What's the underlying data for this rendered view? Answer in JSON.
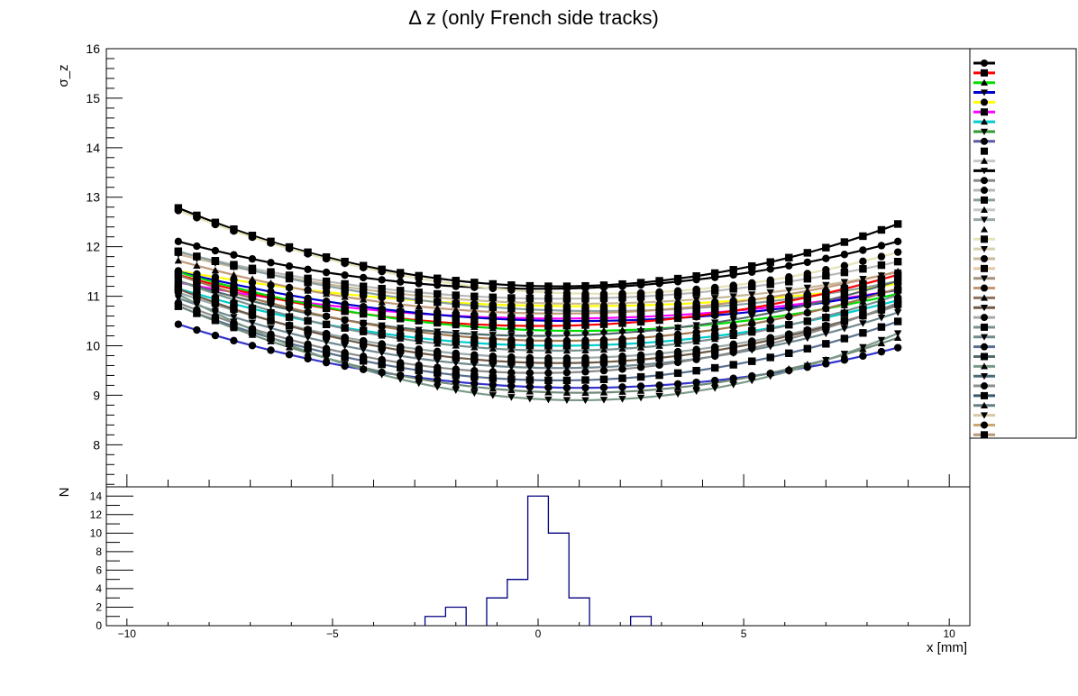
{
  "chart_data": [
    {
      "type": "line",
      "title": "Δ z (only French side tracks)",
      "ylabel": "σ_z",
      "xlim": [
        -10.5,
        10.5
      ],
      "ylim": [
        7.15,
        16
      ],
      "y_ticks": [
        "8",
        "9",
        "10",
        "11",
        "12",
        "13",
        "14",
        "15",
        "16"
      ],
      "x_values": [
        -8.75,
        -8.3,
        -7.85,
        -7.4,
        -6.95,
        -6.5,
        -6.05,
        -5.6,
        -5.15,
        -4.7,
        -4.25,
        -3.8,
        -3.35,
        -2.9,
        -2.45,
        -2.0,
        -1.55,
        -1.1,
        -0.65,
        -0.2,
        0.25,
        0.7,
        1.15,
        1.6,
        2.05,
        2.5,
        2.95,
        3.4,
        3.85,
        4.3,
        4.75,
        5.2,
        5.65,
        6.1,
        6.55,
        7.0,
        7.45,
        7.9,
        8.35,
        8.75
      ],
      "curve_model": "parabola",
      "series_parameters": [
        {
          "vertex_x": 0.5,
          "minimum": 11.2,
          "curvature": 0.0185,
          "color": "#000000",
          "marker": "square"
        },
        {
          "vertex_x": 0.0,
          "minimum": 11.15,
          "curvature": 0.0125,
          "color": "#000000",
          "marker": "circle"
        },
        {
          "vertex_x": 1.5,
          "minimum": 11.05,
          "curvature": 0.016,
          "color": "#e7e3b8",
          "marker": "circle"
        },
        {
          "vertex_x": 0.5,
          "minimum": 10.95,
          "curvature": 0.011,
          "color": "#b8b8b8",
          "marker": "square"
        },
        {
          "vertex_x": 1.0,
          "minimum": 10.85,
          "curvature": 0.0105,
          "color": "#c8b89a",
          "marker": "triangle-down"
        },
        {
          "vertex_x": 1.0,
          "minimum": 10.8,
          "curvature": 0.0075,
          "color": "#ffff00",
          "marker": "circle"
        },
        {
          "vertex_x": 1.5,
          "minimum": 10.7,
          "curvature": 0.0115,
          "color": "#8a9fa0",
          "marker": "square"
        },
        {
          "vertex_x": 0.5,
          "minimum": 10.65,
          "curvature": 0.0125,
          "color": "#c09878",
          "marker": "triangle"
        },
        {
          "vertex_x": 0.5,
          "minimum": 10.55,
          "curvature": 0.0085,
          "color": "#ff00ff",
          "marker": "square"
        },
        {
          "vertex_x": 1.0,
          "minimum": 10.5,
          "curvature": 0.0105,
          "color": "#0000cc",
          "marker": "circle"
        },
        {
          "vertex_x": 0.0,
          "minimum": 10.4,
          "curvature": 0.0135,
          "color": "#ff0000",
          "marker": "square"
        },
        {
          "vertex_x": 1.0,
          "minimum": 10.3,
          "curvature": 0.0125,
          "color": "#00dd00",
          "marker": "triangle"
        },
        {
          "vertex_x": 0.0,
          "minimum": 10.2,
          "curvature": 0.0145,
          "color": "#556b6b",
          "marker": "triangle-down"
        },
        {
          "vertex_x": 0.5,
          "minimum": 10.1,
          "curvature": 0.0155,
          "color": "#a07850",
          "marker": "circle"
        },
        {
          "vertex_x": 0.5,
          "minimum": 10.0,
          "curvature": 0.0135,
          "color": "#00cccc",
          "marker": "square"
        },
        {
          "vertex_x": 0.5,
          "minimum": 9.9,
          "curvature": 0.0165,
          "color": "#7a9090",
          "marker": "triangle"
        },
        {
          "vertex_x": 0.5,
          "minimum": 9.75,
          "curvature": 0.0155,
          "color": "#9aa8a8",
          "marker": "circle"
        },
        {
          "vertex_x": 0.5,
          "minimum": 9.65,
          "curvature": 0.0175,
          "color": "#6e5a46",
          "marker": "square"
        },
        {
          "vertex_x": 0.5,
          "minimum": 9.55,
          "curvature": 0.0165,
          "color": "#708890",
          "marker": "triangle-down"
        },
        {
          "vertex_x": 0.0,
          "minimum": 9.45,
          "curvature": 0.0185,
          "color": "#8a8a8a",
          "marker": "circle"
        },
        {
          "vertex_x": 0.5,
          "minimum": 9.3,
          "curvature": 0.0175,
          "color": "#5a7090",
          "marker": "square"
        },
        {
          "vertex_x": 1.0,
          "minimum": 9.15,
          "curvature": 0.0135,
          "color": "#3333cc",
          "marker": "circle"
        },
        {
          "vertex_x": 1.0,
          "minimum": 9.05,
          "curvature": 0.0185,
          "color": "#708a78",
          "marker": "triangle"
        },
        {
          "vertex_x": 1.0,
          "minimum": 8.9,
          "curvature": 0.0225,
          "color": "#7a9a88",
          "marker": "triangle-down"
        }
      ],
      "legend_entries": [
        {
          "color": "#000000",
          "marker": "circle"
        },
        {
          "color": "#ff0000",
          "marker": "square"
        },
        {
          "color": "#00dd00",
          "marker": "triangle"
        },
        {
          "color": "#0000cc",
          "marker": "triangle-down"
        },
        {
          "color": "#ffff00",
          "marker": "circle"
        },
        {
          "color": "#ff00ff",
          "marker": "square"
        },
        {
          "color": "#00cccc",
          "marker": "triangle"
        },
        {
          "color": "#339933",
          "marker": "triangle-down"
        },
        {
          "color": "#5a5aa0",
          "marker": "circle"
        },
        {
          "color": "#ffffff",
          "marker": "square"
        },
        {
          "color": "#c8c8c8",
          "marker": "triangle"
        },
        {
          "color": "#000000",
          "marker": "triangle-down"
        },
        {
          "color": "#8a8a8a",
          "marker": "circle"
        },
        {
          "color": "#b8b8b8",
          "marker": "circle"
        },
        {
          "color": "#8a9fa0",
          "marker": "square"
        },
        {
          "color": "#c8c8c8",
          "marker": "triangle"
        },
        {
          "color": "#9aa8a8",
          "marker": "triangle-down"
        },
        {
          "color": "#ffffff",
          "marker": "triangle"
        },
        {
          "color": "#e7e3b8",
          "marker": "square"
        },
        {
          "color": "#d8d0b0",
          "marker": "triangle-down"
        },
        {
          "color": "#c8b89a",
          "marker": "circle"
        },
        {
          "color": "#e0c8a0",
          "marker": "square"
        },
        {
          "color": "#a09080",
          "marker": "triangle-down"
        },
        {
          "color": "#c09878",
          "marker": "circle"
        },
        {
          "color": "#8a7060",
          "marker": "triangle"
        },
        {
          "color": "#6e5a46",
          "marker": "triangle-down"
        },
        {
          "color": "#a8a8a8",
          "marker": "circle"
        },
        {
          "color": "#7a9090",
          "marker": "square"
        },
        {
          "color": "#708890",
          "marker": "triangle-down"
        },
        {
          "color": "#5a7090",
          "marker": "circle"
        },
        {
          "color": "#556b6b",
          "marker": "square"
        },
        {
          "color": "#7a9a88",
          "marker": "triangle"
        },
        {
          "color": "#4a6a7a",
          "marker": "triangle-down"
        },
        {
          "color": "#8a9090",
          "marker": "circle"
        },
        {
          "color": "#3a5a6a",
          "marker": "square"
        },
        {
          "color": "#6a8088",
          "marker": "triangle"
        },
        {
          "color": "#d8c8a8",
          "marker": "triangle-down"
        },
        {
          "color": "#c8a870",
          "marker": "circle"
        },
        {
          "color": "#b89878",
          "marker": "square"
        }
      ]
    },
    {
      "type": "histogram",
      "ylabel": "N",
      "xlabel": "x [mm]",
      "xlim": [
        -10.5,
        10.5
      ],
      "ylim": [
        0,
        15
      ],
      "x_ticks": [
        "−10",
        "−5",
        "0",
        "5",
        "10"
      ],
      "y_ticks": [
        "0",
        "2",
        "4",
        "6",
        "8",
        "10",
        "12",
        "14"
      ],
      "bin_width": 0.5,
      "bins": [
        {
          "x_low": -2.75,
          "count": 1
        },
        {
          "x_low": -2.25,
          "count": 2
        },
        {
          "x_low": -1.25,
          "count": 3
        },
        {
          "x_low": -0.75,
          "count": 5
        },
        {
          "x_low": -0.25,
          "count": 14
        },
        {
          "x_low": 0.25,
          "count": 10
        },
        {
          "x_low": 0.75,
          "count": 3
        },
        {
          "x_low": 2.25,
          "count": 1
        }
      ],
      "line_color": "#000080"
    }
  ]
}
